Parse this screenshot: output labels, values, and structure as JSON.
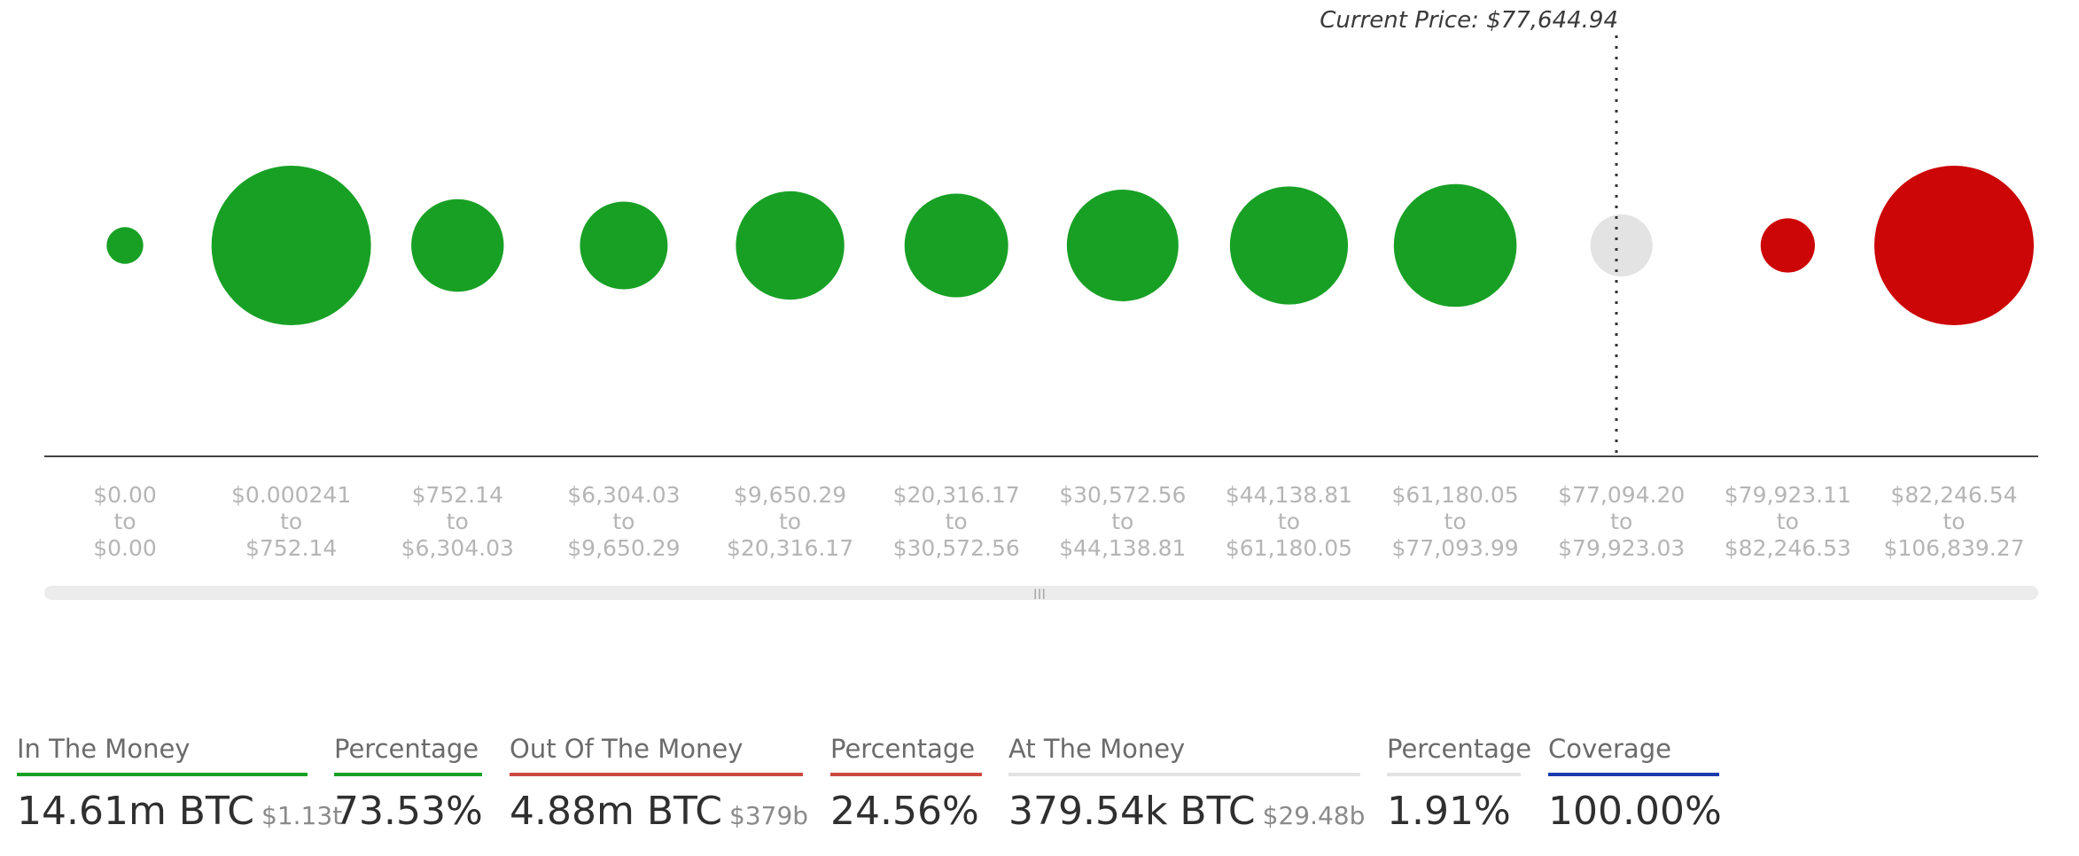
{
  "current_price": "Current Price: $77,644.94",
  "chart_data": {
    "type": "scatter",
    "title": "",
    "xlabel": "",
    "ylabel": "",
    "categories": [
      [
        "$0.00",
        "to",
        "$0.00"
      ],
      [
        "$0.000241",
        "to",
        "$752.14"
      ],
      [
        "$752.14",
        "to",
        "$6,304.03"
      ],
      [
        "$6,304.03",
        "to",
        "$9,650.29"
      ],
      [
        "$9,650.29",
        "to",
        "$20,316.17"
      ],
      [
        "$20,316.17",
        "to",
        "$30,572.56"
      ],
      [
        "$30,572.56",
        "to",
        "$44,138.81"
      ],
      [
        "$44,138.81",
        "to",
        "$61,180.05"
      ],
      [
        "$61,180.05",
        "to",
        "$77,093.99"
      ],
      [
        "$77,094.20",
        "to",
        "$79,923.03"
      ],
      [
        "$79,923.11",
        "to",
        "$82,246.53"
      ],
      [
        "$82,246.54",
        "to",
        "$106,839.27"
      ]
    ],
    "relative_size": [
      0.23,
      1.0,
      0.58,
      0.55,
      0.68,
      0.65,
      0.7,
      0.74,
      0.77,
      0.39,
      0.34,
      1.0
    ],
    "status": [
      "in",
      "in",
      "in",
      "in",
      "in",
      "in",
      "in",
      "in",
      "in",
      "at",
      "out",
      "out"
    ],
    "current_price": 77644.94
  },
  "colors": {
    "in": "#18a025",
    "out": "#cc0606",
    "at": "#e3e3e3",
    "coverage": "#1a3cad"
  },
  "stats": {
    "in_money": {
      "label": "In The Money",
      "value": "14.61m BTC",
      "usd": "$1.13t"
    },
    "in_pct": {
      "label": "Percentage",
      "value": "73.53%"
    },
    "out_money": {
      "label": "Out Of The Money",
      "value": "4.88m BTC",
      "usd": "$379b"
    },
    "out_pct": {
      "label": "Percentage",
      "value": "24.56%"
    },
    "at_money": {
      "label": "At The Money",
      "value": "379.54k BTC",
      "usd": "$29.48b"
    },
    "at_pct": {
      "label": "Percentage",
      "value": "1.91%"
    },
    "coverage": {
      "label": "Coverage",
      "value": "100.00%"
    }
  }
}
